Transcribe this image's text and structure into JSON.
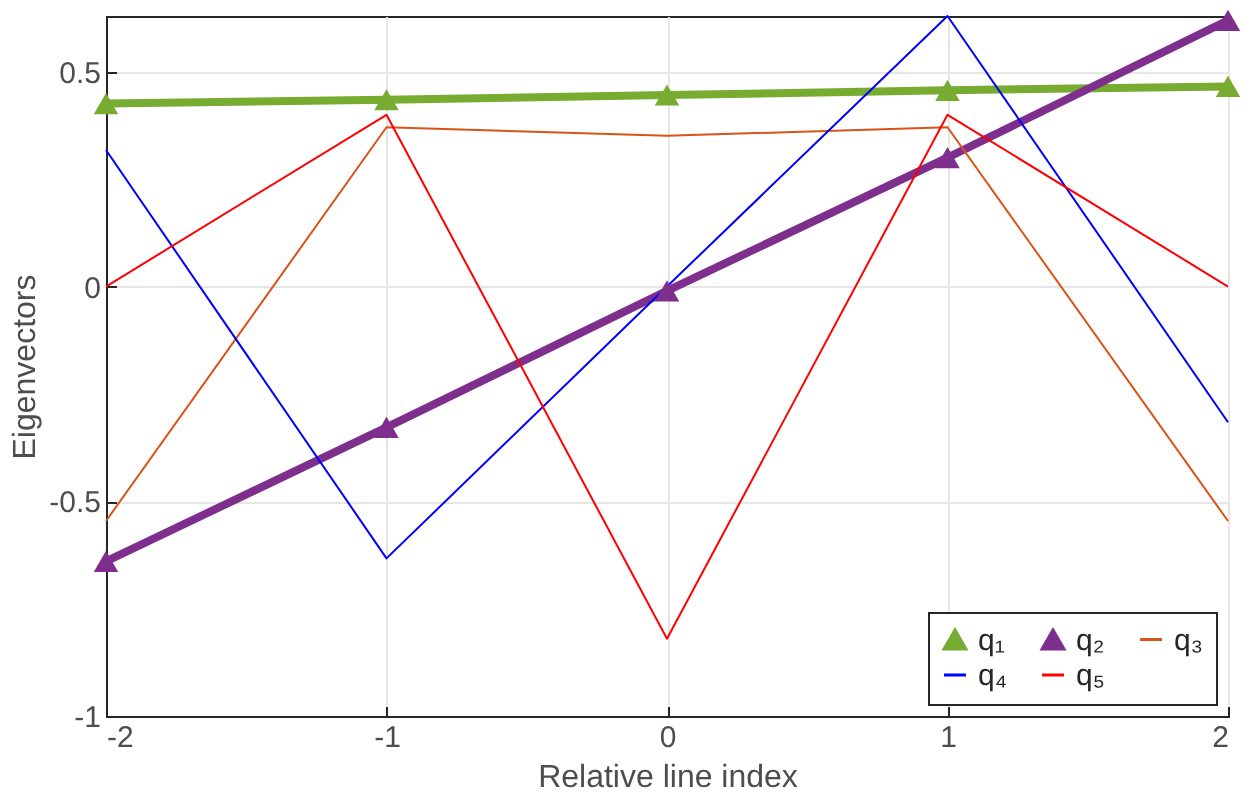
{
  "chart_data": {
    "type": "line",
    "xlabel": "Relative line index",
    "ylabel": "Eigenvectors",
    "x": [
      -2,
      -1,
      0,
      1,
      2
    ],
    "series": [
      {
        "name": "q₁",
        "color": "#77ac30",
        "marker": "triangle",
        "values": [
          0.426,
          0.435,
          0.446,
          0.457,
          0.466
        ]
      },
      {
        "name": "q₂",
        "color": "#7e2f8e",
        "marker": "triangle",
        "values": [
          -0.64,
          -0.328,
          -0.01,
          0.3,
          0.62
        ]
      },
      {
        "name": "q₃",
        "color": "#d95319",
        "marker": "none",
        "values": [
          -0.546,
          0.371,
          0.351,
          0.371,
          -0.546
        ]
      },
      {
        "name": "q₄",
        "color": "#0000ff",
        "marker": "none",
        "values": [
          0.318,
          -0.633,
          0,
          0.63,
          -0.316
        ]
      },
      {
        "name": "q₅",
        "color": "#ff0000",
        "marker": "none",
        "values": [
          0,
          0.4,
          -0.82,
          0.4,
          0
        ]
      }
    ],
    "xlim": [
      -2,
      2
    ],
    "xticks": [
      -2,
      -1,
      0,
      1,
      2
    ],
    "ylim": [
      -1,
      0.63
    ],
    "yticks": [
      -1,
      -0.5,
      0,
      0.5
    ],
    "grid": true,
    "legend": "bottom right"
  }
}
